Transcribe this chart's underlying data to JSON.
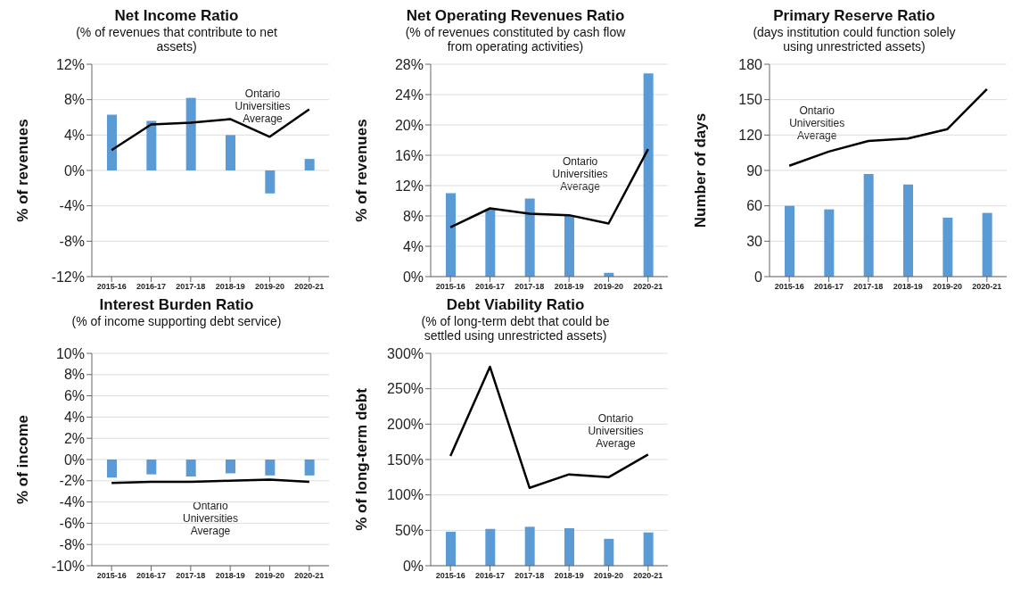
{
  "chart_data": [
    {
      "type": "bar",
      "title": "Net Income Ratio",
      "subtitle": "(% of revenues that contribute to net assets)",
      "ylabel": "% of revenues",
      "categories": [
        "2015-16",
        "2016-17",
        "2017-18",
        "2018-19",
        "2019-20",
        "2020-21"
      ],
      "series": [
        {
          "color": "#5b9bd5",
          "values": [
            6.3,
            5.6,
            8.2,
            4.0,
            -2.6,
            1.3
          ]
        },
        {
          "type": "line",
          "color": "#000000",
          "values": [
            2.3,
            5.2,
            5.4,
            5.8,
            3.8,
            6.9
          ]
        }
      ],
      "ylim": [
        -12,
        12
      ],
      "yticks": [
        {
          "value": -12,
          "label": "-12%"
        },
        {
          "value": -8,
          "label": "-8%"
        },
        {
          "value": -4,
          "label": "-4%"
        },
        {
          "value": 0,
          "label": "0%"
        },
        {
          "value": 4,
          "label": "4%"
        },
        {
          "value": 8,
          "label": "8%"
        },
        {
          "value": 12,
          "label": "12%"
        }
      ],
      "grid": "y",
      "marker": "none",
      "annotations": [
        "Ontario Universities Average"
      ]
    },
    {
      "type": "bar",
      "title": "Net Operating Revenues Ratio",
      "subtitle": "(% of revenues constituted by cash flow from operating activities)",
      "ylabel": "% of revenues",
      "categories": [
        "2015-16",
        "2016-17",
        "2017-18",
        "2018-19",
        "2019-20",
        "2020-21"
      ],
      "series": [
        {
          "color": "#5b9bd5",
          "values": [
            11.0,
            8.9,
            10.3,
            8.0,
            0.5,
            26.8
          ]
        },
        {
          "type": "line",
          "color": "#000000",
          "values": [
            6.5,
            9.0,
            8.3,
            8.1,
            7.0,
            16.8
          ]
        }
      ],
      "ylim": [
        0,
        28
      ],
      "yticks": [
        {
          "value": 0,
          "label": "0%"
        },
        {
          "value": 4,
          "label": "4%"
        },
        {
          "value": 8,
          "label": "8%"
        },
        {
          "value": 12,
          "label": "12%"
        },
        {
          "value": 16,
          "label": "16%"
        },
        {
          "value": 20,
          "label": "20%"
        },
        {
          "value": 24,
          "label": "24%"
        },
        {
          "value": 28,
          "label": "28%"
        }
      ],
      "grid": "y",
      "marker": "none",
      "annotations": [
        "Ontario Universities Average"
      ]
    },
    {
      "type": "bar",
      "title": "Primary Reserve Ratio",
      "subtitle": "(days institution could function solely using unrestricted assets)",
      "ylabel": "Number of days",
      "categories": [
        "2015-16",
        "2016-17",
        "2017-18",
        "2018-19",
        "2019-20",
        "2020-21"
      ],
      "series": [
        {
          "color": "#5b9bd5",
          "values": [
            60,
            57,
            87,
            78,
            50,
            54
          ]
        },
        {
          "type": "line",
          "color": "#000000",
          "values": [
            94,
            106,
            115,
            117,
            125,
            159
          ]
        }
      ],
      "ylim": [
        0,
        180
      ],
      "yticks": [
        0,
        30,
        60,
        90,
        120,
        150,
        180
      ],
      "grid": "y",
      "marker": "none",
      "annotations": [
        "Ontario Universities Average"
      ]
    },
    {
      "type": "bar",
      "title": "Interest Burden Ratio",
      "subtitle": "(% of income supporting debt service)",
      "ylabel": "% of income",
      "categories": [
        "2015-16",
        "2016-17",
        "2017-18",
        "2018-19",
        "2019-20",
        "2020-21"
      ],
      "series": [
        {
          "color": "#5b9bd5",
          "values": [
            -1.7,
            -1.4,
            -1.6,
            -1.3,
            -1.5,
            -1.5
          ]
        },
        {
          "type": "line",
          "color": "#000000",
          "values": [
            -2.2,
            -2.1,
            -2.1,
            -2.0,
            -1.9,
            -2.1
          ]
        }
      ],
      "ylim": [
        -10,
        10
      ],
      "yticks": [
        {
          "value": -10,
          "label": "-10%"
        },
        {
          "value": -8,
          "label": "-8%"
        },
        {
          "value": -6,
          "label": "-6%"
        },
        {
          "value": -4,
          "label": "-4%"
        },
        {
          "value": -2,
          "label": "-2%"
        },
        {
          "value": 0,
          "label": "0%"
        },
        {
          "value": 2,
          "label": "2%"
        },
        {
          "value": 4,
          "label": "4%"
        },
        {
          "value": 6,
          "label": "6%"
        },
        {
          "value": 8,
          "label": "8%"
        },
        {
          "value": 10,
          "label": "10%"
        }
      ],
      "grid": "y",
      "marker": "none",
      "annotations": [
        "Ontario Universities Average"
      ]
    },
    {
      "type": "bar",
      "title": "Debt Viability Ratio",
      "subtitle": "(% of long-term debt that could be settled using unrestricted assets)",
      "ylabel": "% of long-term debt",
      "categories": [
        "2015-16",
        "2016-17",
        "2017-18",
        "2018-19",
        "2019-20",
        "2020-21"
      ],
      "series": [
        {
          "color": "#5b9bd5",
          "values": [
            48,
            52,
            55,
            53,
            38,
            47
          ]
        },
        {
          "type": "line",
          "color": "#000000",
          "values": [
            155,
            281,
            110,
            129,
            125,
            157
          ]
        }
      ],
      "ylim": [
        0,
        300
      ],
      "yticks": [
        {
          "value": 0,
          "label": "0%"
        },
        {
          "value": 50,
          "label": "50%"
        },
        {
          "value": 100,
          "label": "100%"
        },
        {
          "value": 150,
          "label": "150%"
        },
        {
          "value": 200,
          "label": "200%"
        },
        {
          "value": 250,
          "label": "250%"
        },
        {
          "value": 300,
          "label": "300%"
        }
      ],
      "grid": "y",
      "marker": "none",
      "annotations": [
        "Ontario Universities Average"
      ]
    }
  ]
}
